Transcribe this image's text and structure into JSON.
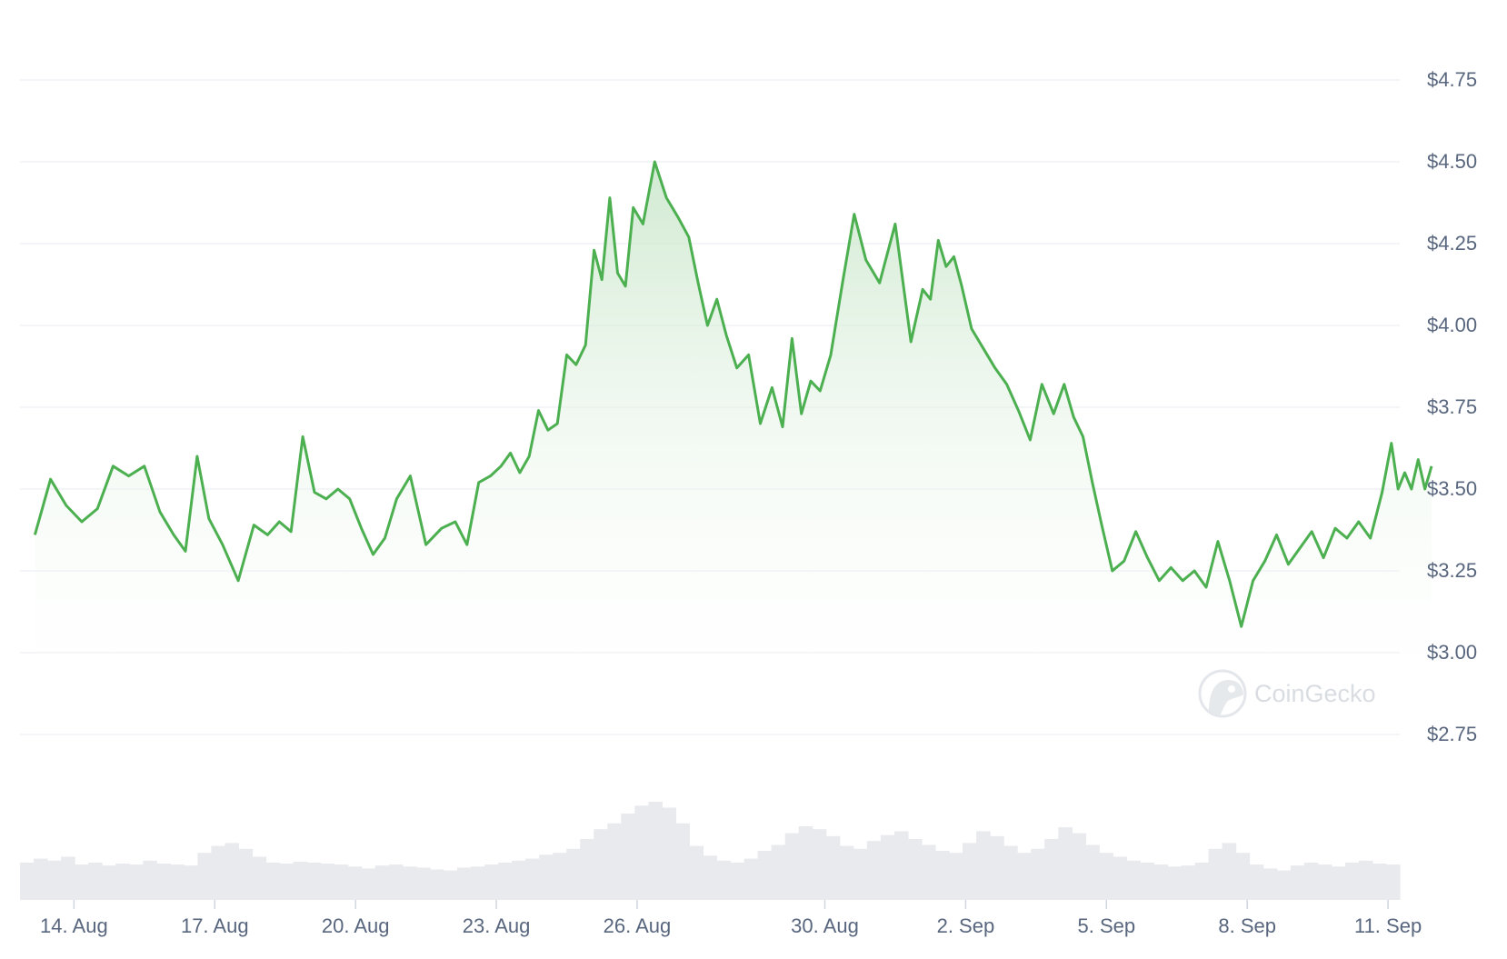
{
  "chart_data": {
    "type": "area",
    "title": "",
    "xlabel": "",
    "ylabel": "",
    "ylim": [
      2.5,
      4.9
    ],
    "grid": true,
    "legend": "none",
    "x_start": "13 Aug",
    "x_end": "11 Sep",
    "price": [
      [
        "13 Aug",
        3.36
      ],
      [
        "13 Aug",
        3.53
      ],
      [
        "13 Aug",
        3.45
      ],
      [
        "14 Aug",
        3.4
      ],
      [
        "14 Aug",
        3.44
      ],
      [
        "14 Aug",
        3.57
      ],
      [
        "15 Aug",
        3.54
      ],
      [
        "15 Aug",
        3.57
      ],
      [
        "15 Aug",
        3.43
      ],
      [
        "16 Aug",
        3.36
      ],
      [
        "16 Aug",
        3.31
      ],
      [
        "16 Aug",
        3.6
      ],
      [
        "16 Aug",
        3.41
      ],
      [
        "17 Aug",
        3.33
      ],
      [
        "17 Aug",
        3.22
      ],
      [
        "17 Aug",
        3.39
      ],
      [
        "18 Aug",
        3.36
      ],
      [
        "18 Aug",
        3.4
      ],
      [
        "18 Aug",
        3.37
      ],
      [
        "18 Aug",
        3.66
      ],
      [
        "19 Aug",
        3.49
      ],
      [
        "19 Aug",
        3.47
      ],
      [
        "19 Aug",
        3.5
      ],
      [
        "19 Aug",
        3.47
      ],
      [
        "20 Aug",
        3.38
      ],
      [
        "20 Aug",
        3.3
      ],
      [
        "20 Aug",
        3.35
      ],
      [
        "20 Aug",
        3.47
      ],
      [
        "21 Aug",
        3.54
      ],
      [
        "21 Aug",
        3.33
      ],
      [
        "21 Aug",
        3.38
      ],
      [
        "22 Aug",
        3.4
      ],
      [
        "22 Aug",
        3.33
      ],
      [
        "22 Aug",
        3.52
      ],
      [
        "22 Aug",
        3.54
      ],
      [
        "23 Aug",
        3.57
      ],
      [
        "23 Aug",
        3.61
      ],
      [
        "23 Aug",
        3.55
      ],
      [
        "23 Aug",
        3.6
      ],
      [
        "23 Aug",
        3.74
      ],
      [
        "24 Aug",
        3.68
      ],
      [
        "24 Aug",
        3.7
      ],
      [
        "24 Aug",
        3.91
      ],
      [
        "24 Aug",
        3.88
      ],
      [
        "24 Aug",
        3.94
      ],
      [
        "25 Aug",
        4.23
      ],
      [
        "25 Aug",
        4.14
      ],
      [
        "25 Aug",
        4.39
      ],
      [
        "25 Aug",
        4.16
      ],
      [
        "25 Aug",
        4.12
      ],
      [
        "25 Aug",
        4.36
      ],
      [
        "26 Aug",
        4.31
      ],
      [
        "26 Aug",
        4.5
      ],
      [
        "26 Aug",
        4.39
      ],
      [
        "26 Aug",
        4.33
      ],
      [
        "27 Aug",
        4.27
      ],
      [
        "27 Aug",
        4.13
      ],
      [
        "27 Aug",
        4.0
      ],
      [
        "27 Aug",
        4.08
      ],
      [
        "27 Aug",
        3.97
      ],
      [
        "28 Aug",
        3.87
      ],
      [
        "28 Aug",
        3.91
      ],
      [
        "28 Aug",
        3.7
      ],
      [
        "28 Aug",
        3.81
      ],
      [
        "29 Aug",
        3.69
      ],
      [
        "29 Aug",
        3.96
      ],
      [
        "29 Aug",
        3.73
      ],
      [
        "29 Aug",
        3.83
      ],
      [
        "29 Aug",
        3.8
      ],
      [
        "30 Aug",
        3.91
      ],
      [
        "30 Aug",
        4.13
      ],
      [
        "30 Aug",
        4.34
      ],
      [
        "30 Aug",
        4.2
      ],
      [
        "31 Aug",
        4.13
      ],
      [
        "31 Aug",
        4.31
      ],
      [
        "31 Aug",
        3.95
      ],
      [
        "1 Sep",
        4.11
      ],
      [
        "1 Sep",
        4.08
      ],
      [
        "1 Sep",
        4.26
      ],
      [
        "1 Sep",
        4.18
      ],
      [
        "1 Sep",
        4.21
      ],
      [
        "1 Sep",
        4.12
      ],
      [
        "2 Sep",
        3.99
      ],
      [
        "2 Sep",
        3.93
      ],
      [
        "2 Sep",
        3.87
      ],
      [
        "2 Sep",
        3.82
      ],
      [
        "3 Sep",
        3.74
      ],
      [
        "3 Sep",
        3.65
      ],
      [
        "3 Sep",
        3.82
      ],
      [
        "3 Sep",
        3.73
      ],
      [
        "4 Sep",
        3.82
      ],
      [
        "4 Sep",
        3.72
      ],
      [
        "4 Sep",
        3.66
      ],
      [
        "4 Sep",
        3.52
      ],
      [
        "4 Sep",
        3.39
      ],
      [
        "5 Sep",
        3.25
      ],
      [
        "5 Sep",
        3.28
      ],
      [
        "5 Sep",
        3.37
      ],
      [
        "5 Sep",
        3.29
      ],
      [
        "6 Sep",
        3.22
      ],
      [
        "6 Sep",
        3.26
      ],
      [
        "6 Sep",
        3.22
      ],
      [
        "6 Sep",
        3.25
      ],
      [
        "7 Sep",
        3.2
      ],
      [
        "7 Sep",
        3.34
      ],
      [
        "7 Sep",
        3.22
      ],
      [
        "7 Sep",
        3.08
      ],
      [
        "8 Sep",
        3.22
      ],
      [
        "8 Sep",
        3.28
      ],
      [
        "8 Sep",
        3.36
      ],
      [
        "8 Sep",
        3.27
      ],
      [
        "9 Sep",
        3.32
      ],
      [
        "9 Sep",
        3.37
      ],
      [
        "9 Sep",
        3.29
      ],
      [
        "9 Sep",
        3.38
      ],
      [
        "10 Sep",
        3.35
      ],
      [
        "10 Sep",
        3.4
      ],
      [
        "10 Sep",
        3.35
      ],
      [
        "10 Sep",
        3.49
      ],
      [
        "11 Sep",
        3.64
      ],
      [
        "11 Sep",
        3.5
      ],
      [
        "11 Sep",
        3.55
      ],
      [
        "11 Sep",
        3.5
      ],
      [
        "11 Sep",
        3.59
      ],
      [
        "11 Sep",
        3.5
      ],
      [
        "11 Sep",
        3.57
      ]
    ],
    "volume_relative": [
      0.38,
      0.42,
      0.4,
      0.44,
      0.36,
      0.38,
      0.35,
      0.37,
      0.36,
      0.4,
      0.37,
      0.36,
      0.35,
      0.48,
      0.55,
      0.58,
      0.52,
      0.44,
      0.38,
      0.37,
      0.39,
      0.38,
      0.37,
      0.36,
      0.34,
      0.32,
      0.35,
      0.36,
      0.34,
      0.33,
      0.31,
      0.3,
      0.33,
      0.34,
      0.36,
      0.38,
      0.4,
      0.42,
      0.46,
      0.48,
      0.52,
      0.62,
      0.72,
      0.78,
      0.88,
      0.96,
      1.0,
      0.94,
      0.78,
      0.55,
      0.45,
      0.4,
      0.38,
      0.42,
      0.5,
      0.56,
      0.68,
      0.75,
      0.72,
      0.65,
      0.55,
      0.52,
      0.6,
      0.66,
      0.7,
      0.62,
      0.56,
      0.5,
      0.48,
      0.58,
      0.7,
      0.65,
      0.55,
      0.48,
      0.52,
      0.62,
      0.74,
      0.68,
      0.56,
      0.48,
      0.44,
      0.4,
      0.38,
      0.36,
      0.34,
      0.35,
      0.38,
      0.52,
      0.58,
      0.48,
      0.36,
      0.32,
      0.3,
      0.35,
      0.38,
      0.36,
      0.34,
      0.38,
      0.4,
      0.37,
      0.36
    ],
    "y_ticks": [
      "$2.75",
      "$3.00",
      "$3.25",
      "$3.50",
      "$3.75",
      "$4.00",
      "$4.25",
      "$4.50",
      "$4.75"
    ],
    "y_tick_values": [
      2.75,
      3.0,
      3.25,
      3.5,
      3.75,
      4.0,
      4.25,
      4.5,
      4.75
    ],
    "x_ticks": [
      "14. Aug",
      "17. Aug",
      "20. Aug",
      "23. Aug",
      "26. Aug",
      "30. Aug",
      "2. Sep",
      "5. Sep",
      "8. Sep",
      "11. Sep"
    ],
    "x_tick_dates": [
      "14 Aug",
      "17 Aug",
      "20 Aug",
      "23 Aug",
      "26 Aug",
      "30 Aug",
      "2 Sep",
      "5 Sep",
      "8 Sep",
      "11 Sep"
    ],
    "colors": {
      "line": "#4caf50",
      "area_top": "#c8e6c9",
      "grid": "#eff2f5",
      "volume": "#e8eaee",
      "tick_text": "#58667e",
      "watermark": "#d9dde2"
    }
  },
  "watermark": {
    "text": "CoinGecko",
    "icon": "gecko-logo-icon"
  }
}
